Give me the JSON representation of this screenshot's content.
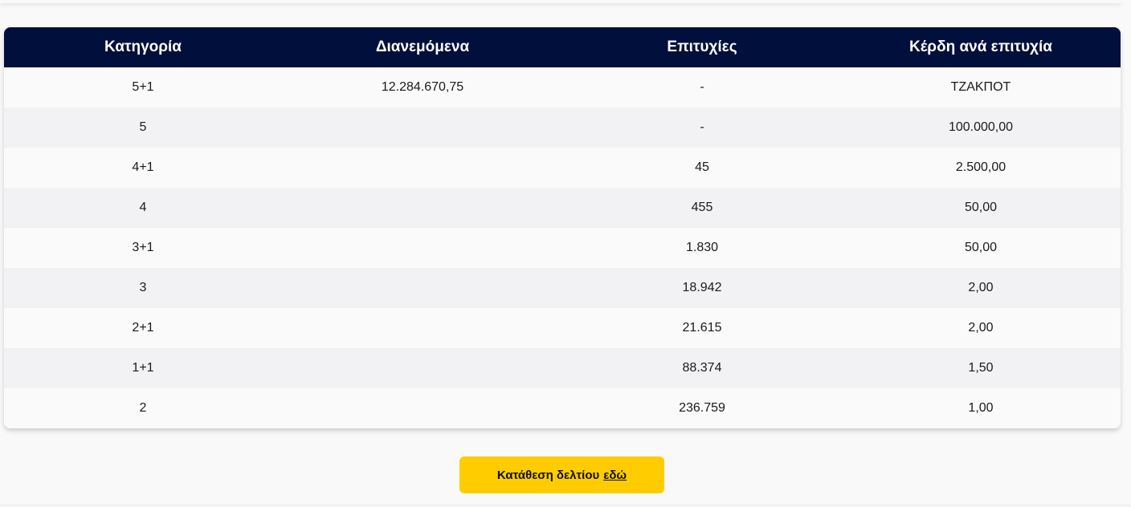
{
  "table": {
    "headers": {
      "category": "Κατηγορία",
      "distributed": "Διανεμόμενα",
      "winners": "Επιτυχίες",
      "prize": "Κέρδη ανά επιτυχία"
    },
    "rows": [
      {
        "category": "5+1",
        "distributed": "12.284.670,75",
        "winners": "-",
        "prize": "ΤΖΑΚΠΟΤ"
      },
      {
        "category": "5",
        "distributed": "",
        "winners": "-",
        "prize": "100.000,00"
      },
      {
        "category": "4+1",
        "distributed": "",
        "winners": "45",
        "prize": "2.500,00"
      },
      {
        "category": "4",
        "distributed": "",
        "winners": "455",
        "prize": "50,00"
      },
      {
        "category": "3+1",
        "distributed": "",
        "winners": "1.830",
        "prize": "50,00"
      },
      {
        "category": "3",
        "distributed": "",
        "winners": "18.942",
        "prize": "2,00"
      },
      {
        "category": "2+1",
        "distributed": "",
        "winners": "21.615",
        "prize": "2,00"
      },
      {
        "category": "1+1",
        "distributed": "",
        "winners": "88.374",
        "prize": "1,50"
      },
      {
        "category": "2",
        "distributed": "",
        "winners": "236.759",
        "prize": "1,00"
      }
    ]
  },
  "cta": {
    "text": "Κατάθεση δελτίου",
    "link_text": "εδώ"
  },
  "colors": {
    "header_bg": "#000f3c",
    "cta_bg": "#ffcc00"
  }
}
